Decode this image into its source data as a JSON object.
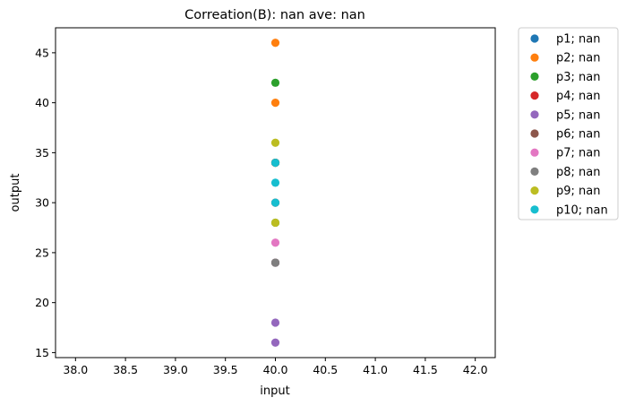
{
  "chart_data": {
    "type": "scatter",
    "title": "Correation(B): nan ave: nan",
    "xlabel": "input",
    "ylabel": "output",
    "xlim": [
      37.8,
      42.2
    ],
    "ylim": [
      14.5,
      47.5
    ],
    "xticks": [
      "38.0",
      "38.5",
      "39.0",
      "39.5",
      "40.0",
      "40.5",
      "41.0",
      "41.5",
      "42.0"
    ],
    "yticks": [
      "15",
      "20",
      "25",
      "30",
      "35",
      "40",
      "45"
    ],
    "grid": false,
    "legend_position": "outside-right",
    "series": [
      {
        "name": "p1; nan",
        "color": "#1f77b4",
        "points": [
          [
            40,
            34
          ]
        ]
      },
      {
        "name": "p2; nan",
        "color": "#ff7f0e",
        "points": [
          [
            40,
            46
          ],
          [
            40,
            40
          ],
          [
            40,
            34
          ]
        ]
      },
      {
        "name": "p3; nan",
        "color": "#2ca02c",
        "points": [
          [
            40,
            42
          ],
          [
            40,
            34
          ],
          [
            40,
            28
          ]
        ]
      },
      {
        "name": "p4; nan",
        "color": "#d62728",
        "points": [
          [
            40,
            34
          ],
          [
            40,
            30
          ]
        ]
      },
      {
        "name": "p5; nan",
        "color": "#9467bd",
        "points": [
          [
            40,
            24
          ],
          [
            40,
            18
          ],
          [
            40,
            16
          ]
        ]
      },
      {
        "name": "p6; nan",
        "color": "#8c564b",
        "points": [
          [
            40,
            24
          ]
        ]
      },
      {
        "name": "p7; nan",
        "color": "#e377c2",
        "points": [
          [
            40,
            26
          ]
        ]
      },
      {
        "name": "p8; nan",
        "color": "#7f7f7f",
        "points": [
          [
            40,
            24
          ]
        ]
      },
      {
        "name": "p9; nan",
        "color": "#bcbd22",
        "points": [
          [
            40,
            36
          ],
          [
            40,
            28
          ]
        ]
      },
      {
        "name": "p10; nan",
        "color": "#17becf",
        "points": [
          [
            40,
            34
          ],
          [
            40,
            32
          ],
          [
            40,
            30
          ]
        ]
      }
    ]
  }
}
